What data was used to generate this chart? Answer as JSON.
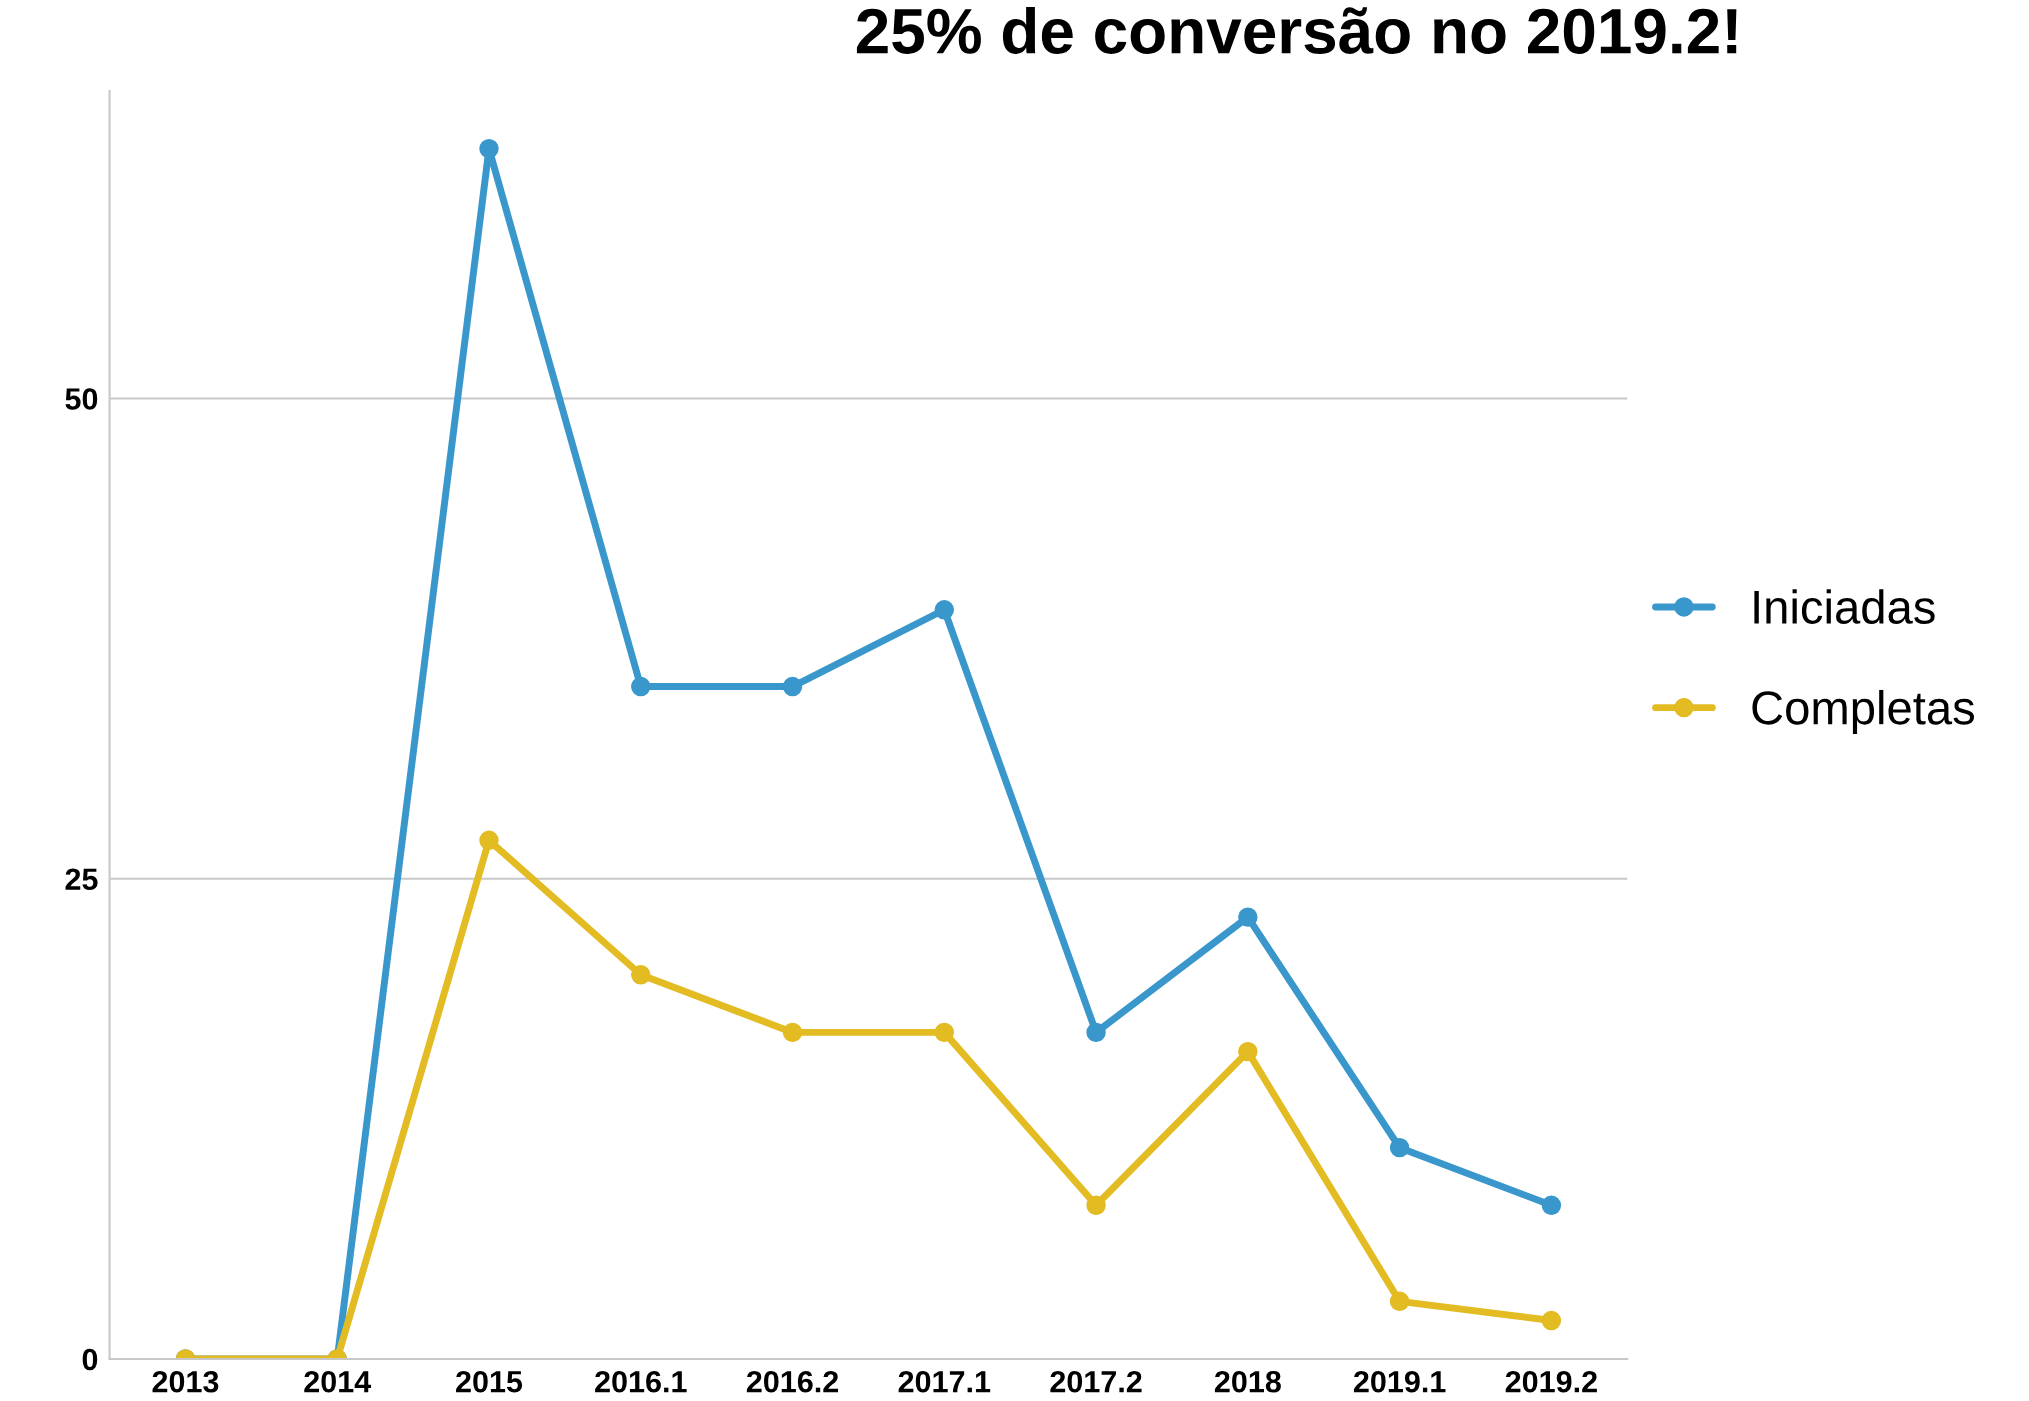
{
  "chart_data": {
    "type": "line",
    "title": "25% de conversão no 2019.2!",
    "categories": [
      "2013",
      "2014",
      "2015",
      "2016.1",
      "2016.2",
      "2017.1",
      "2017.2",
      "2018",
      "2019.1",
      "2019.2"
    ],
    "series": [
      {
        "name": "Iniciadas",
        "color": "#3a97cc",
        "values": [
          0,
          0,
          63,
          35,
          35,
          39,
          17,
          23,
          11,
          8
        ]
      },
      {
        "name": "Completas",
        "color": "#e3bb22",
        "values": [
          0,
          0,
          27,
          20,
          17,
          17,
          8,
          16,
          3,
          2
        ]
      }
    ],
    "ylim": [
      0,
      66
    ],
    "yticks": [
      0,
      25,
      50
    ],
    "grid": "y",
    "legend": "right",
    "marker": "circle",
    "line_style": "solid"
  }
}
